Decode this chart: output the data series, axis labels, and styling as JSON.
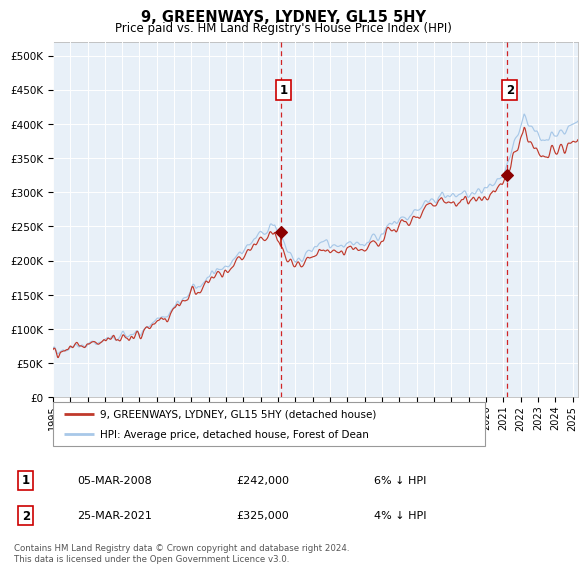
{
  "title": "9, GREENWAYS, LYDNEY, GL15 5HY",
  "subtitle": "Price paid vs. HM Land Registry's House Price Index (HPI)",
  "x_start": 1995.0,
  "x_end": 2025.3,
  "y_min": 0,
  "y_max": 520000,
  "yticks": [
    0,
    50000,
    100000,
    150000,
    200000,
    250000,
    300000,
    350000,
    400000,
    450000,
    500000
  ],
  "ytick_labels": [
    "£0",
    "£50K",
    "£100K",
    "£150K",
    "£200K",
    "£250K",
    "£300K",
    "£350K",
    "£400K",
    "£450K",
    "£500K"
  ],
  "hpi_color": "#a8c8e8",
  "price_color": "#c0392b",
  "bg_color": "#e8f0f8",
  "purchase1_date": 2008.17,
  "purchase1_price": 242000,
  "purchase2_date": 2021.22,
  "purchase2_price": 325000,
  "legend_label1": "9, GREENWAYS, LYDNEY, GL15 5HY (detached house)",
  "legend_label2": "HPI: Average price, detached house, Forest of Dean",
  "table_row1_num": "1",
  "table_row1_date": "05-MAR-2008",
  "table_row1_price": "£242,000",
  "table_row1_hpi": "6% ↓ HPI",
  "table_row2_num": "2",
  "table_row2_date": "25-MAR-2021",
  "table_row2_price": "£325,000",
  "table_row2_hpi": "4% ↓ HPI",
  "footer": "Contains HM Land Registry data © Crown copyright and database right 2024.\nThis data is licensed under the Open Government Licence v3.0.",
  "xtick_years": [
    1995,
    1996,
    1997,
    1998,
    1999,
    2000,
    2001,
    2002,
    2003,
    2004,
    2005,
    2006,
    2007,
    2008,
    2009,
    2010,
    2011,
    2012,
    2013,
    2014,
    2015,
    2016,
    2017,
    2018,
    2019,
    2020,
    2021,
    2022,
    2023,
    2024,
    2025
  ]
}
